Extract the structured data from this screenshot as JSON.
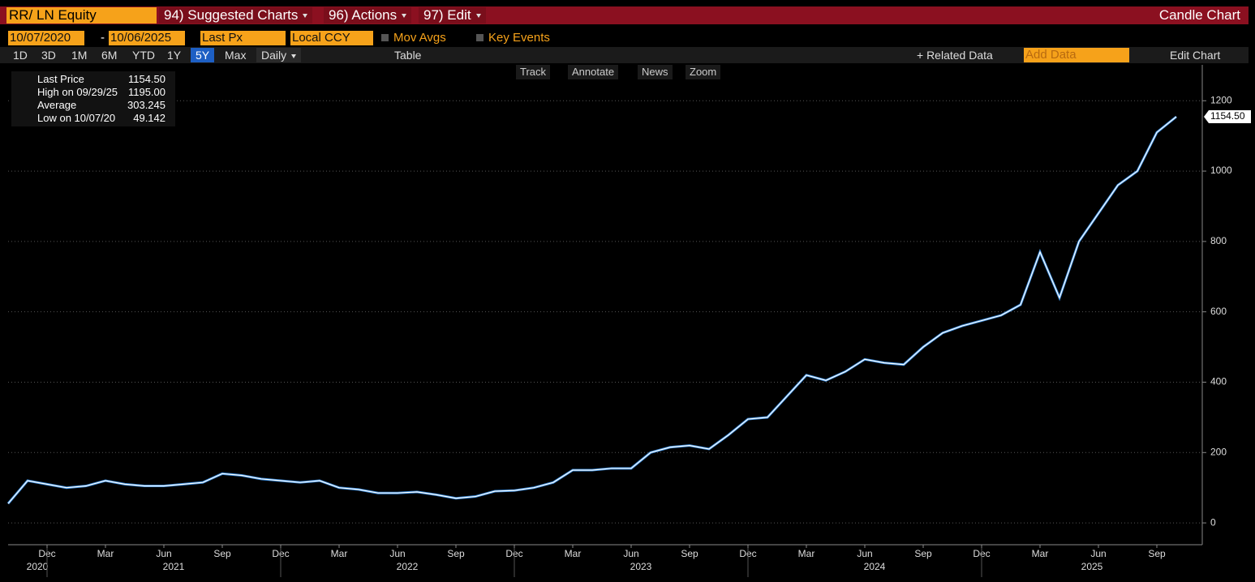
{
  "header": {
    "ticker": "RR/ LN Equity",
    "menus": [
      "94) Suggested Charts",
      "96) Actions",
      "97) Edit"
    ],
    "chart_kind": "Candle Chart"
  },
  "controls": {
    "start_date": "10/07/2020",
    "separator": "-",
    "end_date": "10/06/2025",
    "field": "Last Px",
    "currency": "Local CCY",
    "toggles": [
      "Mov Avgs",
      "Key Events"
    ],
    "periods": [
      "1D",
      "3D",
      "1M",
      "6M",
      "YTD",
      "1Y",
      "5Y",
      "Max"
    ],
    "active_period": "5Y",
    "frequency": "Daily",
    "table": "Table",
    "related": "+ Related Data",
    "add_data": "Add Data",
    "edit_chart": "Edit Chart",
    "tools": [
      "Track",
      "Annotate",
      "News",
      "Zoom"
    ]
  },
  "legend": [
    {
      "name": "Last Price",
      "value": "1154.50"
    },
    {
      "name": "High on 09/29/25",
      "value": "1195.00"
    },
    {
      "name": "Average",
      "value": "303.245"
    },
    {
      "name": "Low on 10/07/20",
      "value": "49.142"
    }
  ],
  "chart_data": {
    "type": "line",
    "color": "#ffffff",
    "accent": "#3d8fe0",
    "x": [
      "2020-10",
      "2020-11",
      "2020-12",
      "2021-01",
      "2021-02",
      "2021-03",
      "2021-04",
      "2021-05",
      "2021-06",
      "2021-07",
      "2021-08",
      "2021-09",
      "2021-10",
      "2021-11",
      "2021-12",
      "2022-01",
      "2022-02",
      "2022-03",
      "2022-04",
      "2022-05",
      "2022-06",
      "2022-07",
      "2022-08",
      "2022-09",
      "2022-10",
      "2022-11",
      "2022-12",
      "2023-01",
      "2023-02",
      "2023-03",
      "2023-04",
      "2023-05",
      "2023-06",
      "2023-07",
      "2023-08",
      "2023-09",
      "2023-10",
      "2023-11",
      "2023-12",
      "2024-01",
      "2024-02",
      "2024-03",
      "2024-04",
      "2024-05",
      "2024-06",
      "2024-07",
      "2024-08",
      "2024-09",
      "2024-10",
      "2024-11",
      "2024-12",
      "2025-01",
      "2025-02",
      "2025-03",
      "2025-04",
      "2025-05",
      "2025-06",
      "2025-07",
      "2025-08",
      "2025-09",
      "2025-10"
    ],
    "series": [
      {
        "name": "Last Price",
        "values": [
          55,
          120,
          110,
          100,
          105,
          120,
          110,
          105,
          105,
          110,
          115,
          140,
          135,
          125,
          120,
          115,
          120,
          100,
          95,
          85,
          85,
          88,
          80,
          70,
          75,
          90,
          92,
          100,
          115,
          150,
          150,
          155,
          155,
          200,
          215,
          220,
          210,
          250,
          295,
          300,
          360,
          420,
          405,
          430,
          465,
          455,
          450,
          500,
          540,
          560,
          575,
          590,
          620,
          770,
          640,
          800,
          880,
          960,
          1000,
          1110,
          1154.5
        ],
        "value_labels": {
          "60": "1154.50"
        }
      }
    ],
    "ylim": [
      -62,
      1302
    ],
    "yticks": [
      0,
      200,
      400,
      600,
      800,
      1000,
      1200
    ],
    "xticks": [
      {
        "value": "2020-12",
        "label": "Dec"
      },
      {
        "value": "2021-03",
        "label": "Mar"
      },
      {
        "value": "2021-06",
        "label": "Jun"
      },
      {
        "value": "2021-09",
        "label": "Sep"
      },
      {
        "value": "2021-12",
        "label": "Dec"
      },
      {
        "value": "2022-03",
        "label": "Mar"
      },
      {
        "value": "2022-06",
        "label": "Jun"
      },
      {
        "value": "2022-09",
        "label": "Sep"
      },
      {
        "value": "2022-12",
        "label": "Dec"
      },
      {
        "value": "2023-03",
        "label": "Mar"
      },
      {
        "value": "2023-06",
        "label": "Jun"
      },
      {
        "value": "2023-09",
        "label": "Sep"
      },
      {
        "value": "2023-12",
        "label": "Dec"
      },
      {
        "value": "2024-03",
        "label": "Mar"
      },
      {
        "value": "2024-06",
        "label": "Jun"
      },
      {
        "value": "2024-09",
        "label": "Sep"
      },
      {
        "value": "2024-12",
        "label": "Dec"
      },
      {
        "value": "2025-03",
        "label": "Mar"
      },
      {
        "value": "2025-06",
        "label": "Jun"
      },
      {
        "value": "2025-09",
        "label": "Sep"
      }
    ],
    "years": [
      "2020",
      "2021",
      "2022",
      "2023",
      "2024",
      "2025"
    ]
  }
}
